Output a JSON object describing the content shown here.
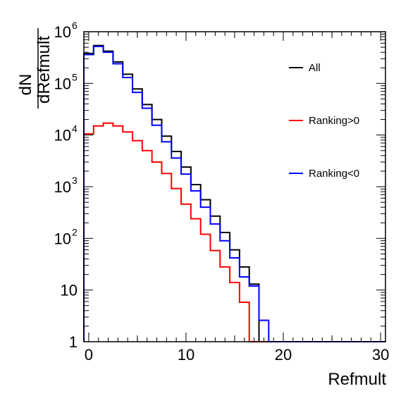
{
  "chart_data": {
    "type": "step-histogram",
    "xlabel": "Refmult",
    "ylabel_numerator": "dN",
    "ylabel_denominator": "dRefmult",
    "xlim": [
      -0.5,
      30.5
    ],
    "ylim": [
      1,
      1000000
    ],
    "yscale": "log",
    "x_ticks": [
      0,
      10,
      20,
      30
    ],
    "x_tick_labels": [
      "0",
      "10",
      "20",
      "30"
    ],
    "y_ticks": [
      1,
      10,
      100,
      1000,
      10000,
      100000,
      1000000
    ],
    "y_tick_labels": [
      {
        "base": "1",
        "exp": ""
      },
      {
        "base": "10",
        "exp": ""
      },
      {
        "base": "10",
        "exp": "2"
      },
      {
        "base": "10",
        "exp": "3"
      },
      {
        "base": "10",
        "exp": "4"
      },
      {
        "base": "10",
        "exp": "5"
      },
      {
        "base": "10",
        "exp": "6"
      }
    ],
    "bin_edges": [
      -0.5,
      0.5,
      1.5,
      2.5,
      3.5,
      4.5,
      5.5,
      6.5,
      7.5,
      8.5,
      9.5,
      10.5,
      11.5,
      12.5,
      13.5,
      14.5,
      15.5,
      16.5,
      17.5,
      18.5,
      19.5,
      20.5,
      21.5,
      22.5,
      23.5,
      24.5,
      25.5,
      26.5,
      27.5,
      28.5,
      29.5,
      30.5
    ],
    "legend_position": "top-right",
    "series": [
      {
        "name": "All",
        "color": "#000000",
        "values": [
          380000,
          540000,
          420000,
          260000,
          150000,
          78000,
          39000,
          20000,
          9500,
          4800,
          2400,
          1100,
          560,
          270,
          130,
          60,
          28,
          13,
          1,
          1,
          1,
          1,
          1,
          1,
          1,
          1,
          1,
          1,
          1,
          1,
          1
        ]
      },
      {
        "name": "Ranking>0",
        "color": "#ff0000",
        "values": [
          10500,
          15000,
          17000,
          15000,
          11500,
          7800,
          5000,
          3000,
          1800,
          920,
          460,
          240,
          120,
          58,
          28,
          14,
          5.8,
          1,
          1,
          1,
          1,
          1,
          1,
          1,
          1,
          1,
          1,
          1,
          1,
          1,
          1
        ]
      },
      {
        "name": "Ranking<0",
        "color": "#0000ff",
        "values": [
          360000,
          520000,
          400000,
          240000,
          130000,
          67000,
          33000,
          15500,
          7400,
          3600,
          1750,
          830,
          400,
          190,
          90,
          42,
          18,
          12,
          2.6,
          1,
          1,
          1,
          1,
          1,
          1,
          1,
          1,
          1,
          1,
          1,
          1
        ]
      }
    ]
  }
}
